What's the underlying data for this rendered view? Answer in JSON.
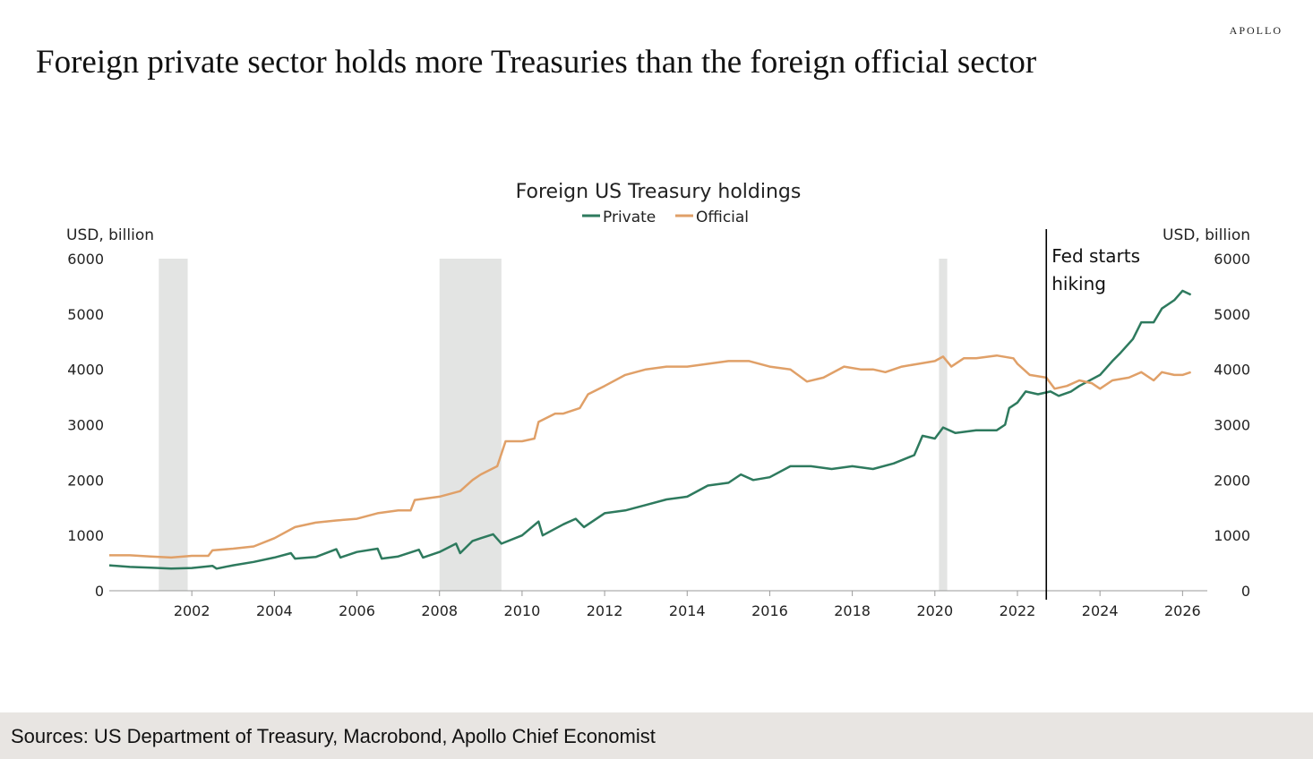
{
  "brand": "APOLLO",
  "headline": "Foreign private sector holds more Treasuries than the foreign official sector",
  "footer": "Sources: US Department of Treasury, Macrobond, Apollo Chief Economist",
  "chart_data": {
    "type": "line",
    "title": "Foreign US Treasury holdings",
    "ylabel_left": "USD, billion",
    "ylabel_right": "USD, billion",
    "ylim": [
      0,
      6000
    ],
    "yticks": [
      0,
      1000,
      2000,
      3000,
      4000,
      5000,
      6000
    ],
    "xlim": [
      2000.0,
      2026.6
    ],
    "xticks": [
      2002,
      2004,
      2006,
      2008,
      2010,
      2012,
      2014,
      2016,
      2018,
      2020,
      2022,
      2024,
      2026
    ],
    "legend_position": "top-center",
    "recessions": [
      [
        2001.2,
        2001.9
      ],
      [
        2008.0,
        2009.5
      ],
      [
        2020.1,
        2020.3
      ]
    ],
    "annotation": {
      "x": 2022.7,
      "lines": [
        "Fed starts",
        "hiking"
      ]
    },
    "series": [
      {
        "name": "Private",
        "color": "#2e7a5e",
        "points": [
          [
            2000.0,
            460
          ],
          [
            2000.5,
            430
          ],
          [
            2001.0,
            415
          ],
          [
            2001.5,
            400
          ],
          [
            2002.0,
            410
          ],
          [
            2002.5,
            450
          ],
          [
            2002.6,
            400
          ],
          [
            2003.0,
            460
          ],
          [
            2003.5,
            520
          ],
          [
            2004.0,
            600
          ],
          [
            2004.4,
            680
          ],
          [
            2004.5,
            580
          ],
          [
            2005.0,
            610
          ],
          [
            2005.5,
            750
          ],
          [
            2005.6,
            600
          ],
          [
            2006.0,
            700
          ],
          [
            2006.5,
            760
          ],
          [
            2006.6,
            580
          ],
          [
            2007.0,
            620
          ],
          [
            2007.5,
            740
          ],
          [
            2007.6,
            600
          ],
          [
            2008.0,
            700
          ],
          [
            2008.4,
            850
          ],
          [
            2008.5,
            680
          ],
          [
            2008.8,
            900
          ],
          [
            2009.0,
            950
          ],
          [
            2009.3,
            1020
          ],
          [
            2009.5,
            850
          ],
          [
            2010.0,
            1000
          ],
          [
            2010.4,
            1250
          ],
          [
            2010.5,
            1000
          ],
          [
            2011.0,
            1200
          ],
          [
            2011.3,
            1300
          ],
          [
            2011.5,
            1150
          ],
          [
            2012.0,
            1400
          ],
          [
            2012.5,
            1450
          ],
          [
            2013.0,
            1550
          ],
          [
            2013.5,
            1650
          ],
          [
            2014.0,
            1700
          ],
          [
            2014.5,
            1900
          ],
          [
            2015.0,
            1950
          ],
          [
            2015.3,
            2100
          ],
          [
            2015.6,
            2000
          ],
          [
            2016.0,
            2050
          ],
          [
            2016.5,
            2250
          ],
          [
            2017.0,
            2250
          ],
          [
            2017.5,
            2200
          ],
          [
            2018.0,
            2250
          ],
          [
            2018.5,
            2200
          ],
          [
            2019.0,
            2300
          ],
          [
            2019.5,
            2450
          ],
          [
            2019.7,
            2800
          ],
          [
            2020.0,
            2750
          ],
          [
            2020.2,
            2950
          ],
          [
            2020.5,
            2850
          ],
          [
            2021.0,
            2900
          ],
          [
            2021.5,
            2900
          ],
          [
            2021.7,
            3000
          ],
          [
            2021.8,
            3300
          ],
          [
            2022.0,
            3400
          ],
          [
            2022.2,
            3600
          ],
          [
            2022.5,
            3550
          ],
          [
            2022.8,
            3600
          ],
          [
            2023.0,
            3520
          ],
          [
            2023.3,
            3600
          ],
          [
            2023.5,
            3700
          ],
          [
            2024.0,
            3900
          ],
          [
            2024.3,
            4150
          ],
          [
            2024.5,
            4300
          ],
          [
            2024.8,
            4550
          ],
          [
            2025.0,
            4850
          ],
          [
            2025.3,
            4850
          ],
          [
            2025.5,
            5100
          ],
          [
            2025.8,
            5250
          ],
          [
            2026.0,
            5420
          ],
          [
            2026.2,
            5350
          ]
        ]
      },
      {
        "name": "Official",
        "color": "#e0a068",
        "points": [
          [
            2000.0,
            640
          ],
          [
            2000.5,
            640
          ],
          [
            2001.0,
            620
          ],
          [
            2001.5,
            600
          ],
          [
            2002.0,
            630
          ],
          [
            2002.4,
            630
          ],
          [
            2002.5,
            730
          ],
          [
            2003.0,
            760
          ],
          [
            2003.5,
            800
          ],
          [
            2004.0,
            950
          ],
          [
            2004.5,
            1150
          ],
          [
            2005.0,
            1230
          ],
          [
            2005.5,
            1270
          ],
          [
            2006.0,
            1300
          ],
          [
            2006.5,
            1400
          ],
          [
            2007.0,
            1450
          ],
          [
            2007.3,
            1450
          ],
          [
            2007.4,
            1640
          ],
          [
            2008.0,
            1700
          ],
          [
            2008.5,
            1800
          ],
          [
            2008.8,
            2000
          ],
          [
            2009.0,
            2100
          ],
          [
            2009.4,
            2250
          ],
          [
            2009.6,
            2700
          ],
          [
            2010.0,
            2700
          ],
          [
            2010.3,
            2750
          ],
          [
            2010.4,
            3050
          ],
          [
            2010.8,
            3200
          ],
          [
            2011.0,
            3200
          ],
          [
            2011.4,
            3300
          ],
          [
            2011.6,
            3550
          ],
          [
            2012.0,
            3700
          ],
          [
            2012.5,
            3900
          ],
          [
            2013.0,
            4000
          ],
          [
            2013.5,
            4050
          ],
          [
            2014.0,
            4050
          ],
          [
            2014.5,
            4100
          ],
          [
            2015.0,
            4150
          ],
          [
            2015.5,
            4150
          ],
          [
            2016.0,
            4050
          ],
          [
            2016.5,
            4000
          ],
          [
            2016.9,
            3780
          ],
          [
            2017.3,
            3850
          ],
          [
            2017.8,
            4050
          ],
          [
            2018.2,
            4000
          ],
          [
            2018.5,
            4000
          ],
          [
            2018.8,
            3950
          ],
          [
            2019.2,
            4050
          ],
          [
            2019.6,
            4100
          ],
          [
            2020.0,
            4150
          ],
          [
            2020.2,
            4230
          ],
          [
            2020.4,
            4050
          ],
          [
            2020.7,
            4200
          ],
          [
            2021.0,
            4200
          ],
          [
            2021.5,
            4250
          ],
          [
            2021.9,
            4200
          ],
          [
            2022.0,
            4100
          ],
          [
            2022.3,
            3900
          ],
          [
            2022.7,
            3850
          ],
          [
            2022.9,
            3650
          ],
          [
            2023.2,
            3700
          ],
          [
            2023.5,
            3800
          ],
          [
            2023.8,
            3750
          ],
          [
            2024.0,
            3650
          ],
          [
            2024.3,
            3800
          ],
          [
            2024.7,
            3850
          ],
          [
            2025.0,
            3950
          ],
          [
            2025.3,
            3800
          ],
          [
            2025.5,
            3950
          ],
          [
            2025.8,
            3900
          ],
          [
            2026.0,
            3900
          ],
          [
            2026.2,
            3950
          ]
        ]
      }
    ]
  }
}
